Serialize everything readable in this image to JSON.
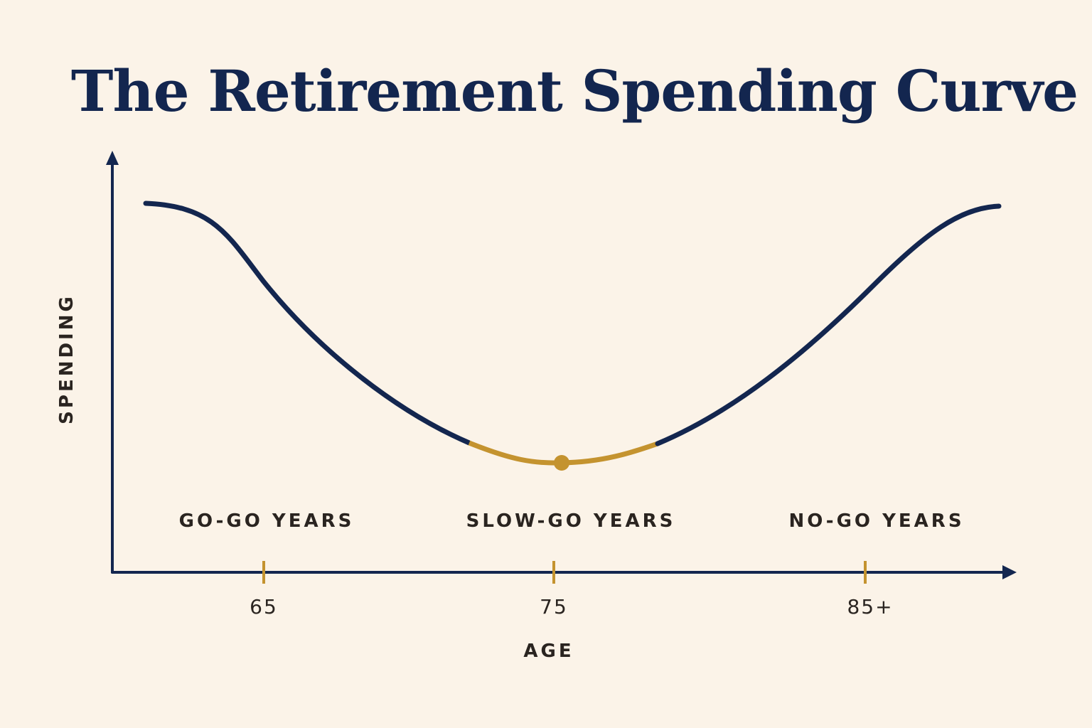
{
  "chart_data": {
    "type": "line",
    "title": "The Retirement Spending Curve",
    "xlabel": "AGE",
    "ylabel": "SPENDING",
    "tick_labels": [
      "65",
      "75",
      "85+"
    ],
    "phase_labels": [
      "GO-GO YEARS",
      "SLOW-GO YEARS",
      "NO-GO YEARS"
    ],
    "highlight_label": "SLOW-GO YEARS",
    "grid": false,
    "legend": "none",
    "colors": {
      "background": "#FBF3E8",
      "curve": "#13264F",
      "highlight": "#C4932F",
      "axis": "#13264F",
      "title": "#13264F",
      "text": "#2A2420"
    }
  }
}
